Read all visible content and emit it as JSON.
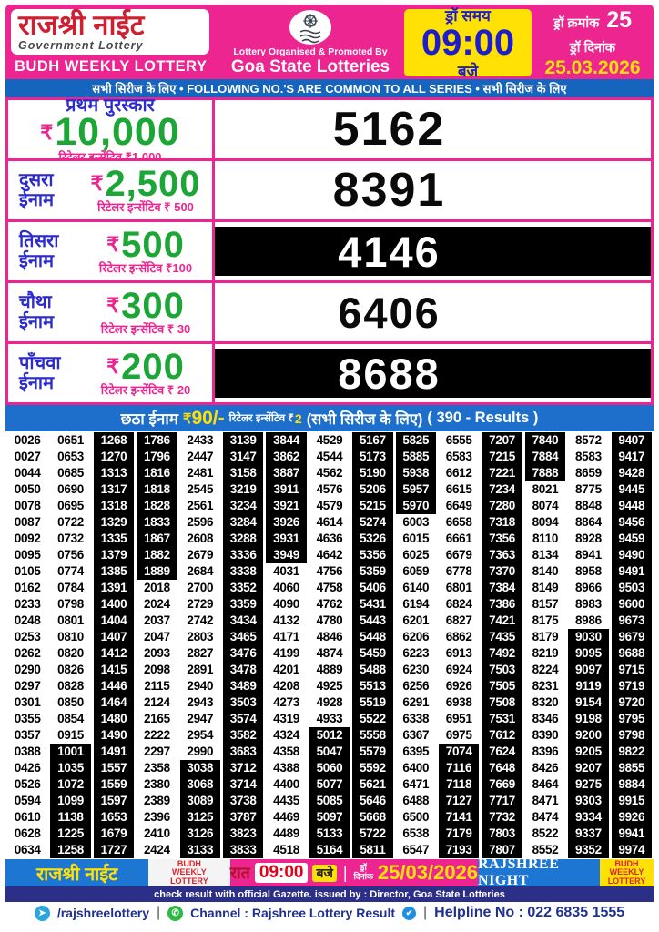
{
  "header": {
    "title": "राजश्री नाईट",
    "subtitle": "Government Lottery",
    "scheme": "BUDH WEEKLY LOTTERY",
    "organiser_line1": "Lottery Organised & Promoted By",
    "organiser_line2": "Goa State Lotteries",
    "draw_time_label": "ड्रॉ समय",
    "draw_time": "09:00",
    "draw_time_suffix": "बजे",
    "draw_no_label": "ड्रॉ क्रमांक",
    "draw_no": "25",
    "draw_date_label": "ड्रॉ दिनांक",
    "draw_date": "25.03.2026"
  },
  "common_strip": "सभी सिरीज के लिए  •  FOLLOWING NO.'S ARE COMMON TO ALL SERIES  • सभी सिरीज के लिए",
  "prizes": [
    {
      "label": "प्रथम पुरस्कार",
      "rupee": "₹",
      "amount": "10,000",
      "incentive": "रिटेलर इन्सेंटिव ₹1,000",
      "number": "5162",
      "inverted": false
    },
    {
      "label_line1": "दुसरा",
      "label_line2": "ईनाम",
      "rupee": "₹",
      "amount": "2,500",
      "incentive": "रिटेलर इन्सेंटिव ₹ 500",
      "number": "8391",
      "inverted": false
    },
    {
      "label_line1": "तिसरा",
      "label_line2": "ईनाम",
      "rupee": "₹",
      "amount": "500",
      "incentive": "रिटेलर इन्सेंटिव ₹100",
      "number": "4146",
      "inverted": true
    },
    {
      "label_line1": "चौथा",
      "label_line2": "ईनाम",
      "rupee": "₹",
      "amount": "300",
      "incentive": "रिटेलर इन्सेंटिव ₹ 30",
      "number": "6406",
      "inverted": false
    },
    {
      "label_line1": "पाँचवा",
      "label_line2": "ईनाम",
      "rupee": "₹",
      "amount": "200",
      "incentive": "रिटेलर इन्सेंटिव ₹ 20",
      "number": "8688",
      "inverted": true
    }
  ],
  "sixth_prize": {
    "label": "छठा ईनाम",
    "rupee": "₹",
    "amount": "90/-",
    "incentive_label": "रिटेलर इन्सेंटिव ₹",
    "incentive_value": "2",
    "series_note": "(सभी सिरीज के लिए)",
    "results_note": "( 390 - Results )"
  },
  "results": [
    [
      "0026",
      "0651",
      "1268",
      "1786",
      "2433",
      "3139",
      "3844",
      "4529",
      "5167",
      "5825",
      "6555",
      "7207",
      "7840",
      "8572",
      "9407"
    ],
    [
      "0027",
      "0653",
      "1270",
      "1796",
      "2447",
      "3147",
      "3862",
      "4544",
      "5173",
      "5885",
      "6583",
      "7215",
      "7884",
      "8583",
      "9417"
    ],
    [
      "0044",
      "0685",
      "1313",
      "1816",
      "2481",
      "3158",
      "3887",
      "4562",
      "5190",
      "5938",
      "6612",
      "7221",
      "7888",
      "8659",
      "9428"
    ],
    [
      "0050",
      "0690",
      "1317",
      "1818",
      "2545",
      "3219",
      "3911",
      "4576",
      "5206",
      "5957",
      "6615",
      "7234",
      "8021",
      "8775",
      "9445"
    ],
    [
      "0078",
      "0695",
      "1318",
      "1828",
      "2561",
      "3234",
      "3921",
      "4579",
      "5215",
      "5970",
      "6649",
      "7280",
      "8074",
      "8848",
      "9448"
    ],
    [
      "0087",
      "0722",
      "1329",
      "1833",
      "2596",
      "3284",
      "3926",
      "4614",
      "5274",
      "6003",
      "6658",
      "7318",
      "8094",
      "8864",
      "9456"
    ],
    [
      "0092",
      "0732",
      "1335",
      "1867",
      "2608",
      "3288",
      "3931",
      "4636",
      "5326",
      "6015",
      "6661",
      "7356",
      "8110",
      "8928",
      "9459"
    ],
    [
      "0095",
      "0756",
      "1379",
      "1882",
      "2679",
      "3336",
      "3949",
      "4642",
      "5356",
      "6025",
      "6679",
      "7363",
      "8134",
      "8941",
      "9490"
    ],
    [
      "0105",
      "0774",
      "1385",
      "1889",
      "2684",
      "3338",
      "4031",
      "4756",
      "5359",
      "6059",
      "6778",
      "7370",
      "8140",
      "8958",
      "9491"
    ],
    [
      "0162",
      "0784",
      "1391",
      "2018",
      "2700",
      "3352",
      "4060",
      "4758",
      "5406",
      "6140",
      "6801",
      "7384",
      "8149",
      "8966",
      "9503"
    ],
    [
      "0233",
      "0798",
      "1400",
      "2024",
      "2729",
      "3359",
      "4090",
      "4762",
      "5431",
      "6194",
      "6824",
      "7386",
      "8157",
      "8983",
      "9600"
    ],
    [
      "0248",
      "0801",
      "1404",
      "2037",
      "2742",
      "3434",
      "4132",
      "4780",
      "5443",
      "6201",
      "6827",
      "7421",
      "8175",
      "8986",
      "9673"
    ],
    [
      "0253",
      "0810",
      "1407",
      "2047",
      "2803",
      "3465",
      "4171",
      "4846",
      "5448",
      "6206",
      "6862",
      "7435",
      "8179",
      "9030",
      "9679"
    ],
    [
      "0262",
      "0820",
      "1412",
      "2093",
      "2827",
      "3476",
      "4199",
      "4874",
      "5459",
      "6223",
      "6913",
      "7492",
      "8219",
      "9095",
      "9688"
    ],
    [
      "0290",
      "0826",
      "1415",
      "2098",
      "2891",
      "3478",
      "4201",
      "4889",
      "5488",
      "6230",
      "6924",
      "7503",
      "8224",
      "9097",
      "9715"
    ],
    [
      "0297",
      "0828",
      "1446",
      "2115",
      "2940",
      "3489",
      "4208",
      "4925",
      "5513",
      "6256",
      "6926",
      "7505",
      "8231",
      "9119",
      "9719"
    ],
    [
      "0301",
      "0850",
      "1464",
      "2124",
      "2943",
      "3503",
      "4273",
      "4928",
      "5519",
      "6291",
      "6938",
      "7508",
      "8320",
      "9154",
      "9720"
    ],
    [
      "0355",
      "0854",
      "1480",
      "2165",
      "2947",
      "3574",
      "4319",
      "4933",
      "5522",
      "6338",
      "6951",
      "7531",
      "8346",
      "9198",
      "9795"
    ],
    [
      "0357",
      "0915",
      "1490",
      "2222",
      "2954",
      "3582",
      "4324",
      "5012",
      "5558",
      "6367",
      "6975",
      "7612",
      "8390",
      "9200",
      "9798"
    ],
    [
      "0388",
      "1001",
      "1491",
      "2297",
      "2990",
      "3683",
      "4358",
      "5047",
      "5579",
      "6395",
      "7074",
      "7624",
      "8396",
      "9205",
      "9822"
    ],
    [
      "0426",
      "1035",
      "1557",
      "2358",
      "3038",
      "3712",
      "4388",
      "5060",
      "5592",
      "6400",
      "7116",
      "7648",
      "8426",
      "9207",
      "9855"
    ],
    [
      "0526",
      "1072",
      "1559",
      "2380",
      "3068",
      "3714",
      "4400",
      "5077",
      "5621",
      "6471",
      "7118",
      "7669",
      "8464",
      "9275",
      "9884"
    ],
    [
      "0594",
      "1099",
      "1597",
      "2389",
      "3089",
      "3738",
      "4435",
      "5085",
      "5646",
      "6488",
      "7127",
      "7717",
      "8471",
      "9303",
      "9915"
    ],
    [
      "0610",
      "1138",
      "1653",
      "2396",
      "3125",
      "3787",
      "4469",
      "5097",
      "5668",
      "6500",
      "7141",
      "7732",
      "8474",
      "9334",
      "9926"
    ],
    [
      "0628",
      "1225",
      "1679",
      "2410",
      "3126",
      "3823",
      "4489",
      "5133",
      "5722",
      "6538",
      "7179",
      "7803",
      "8522",
      "9337",
      "9941"
    ],
    [
      "0634",
      "1258",
      "1727",
      "2424",
      "3133",
      "3833",
      "4518",
      "5164",
      "5811",
      "6547",
      "7193",
      "7807",
      "8552",
      "9352",
      "9974"
    ]
  ],
  "footer": {
    "title": "राजश्री नाईट",
    "scheme_line1": "BUDH",
    "scheme_line2": "WEEKLY",
    "scheme_line3": "LOTTERY",
    "raat": "रात",
    "time": "09:00",
    "baje": "बजे",
    "divider": "|",
    "draw_date_label_line1": "ड्रॉ",
    "draw_date_label_line2": "दिनांक",
    "date": "25/03/2026",
    "brand": "RAJSHREE NIGHT",
    "gazette_note": "check result with official Gazette. issued by : Director, Goa State Lotteries",
    "telegram_handle": "/rajshreelottery",
    "separator": "|",
    "channel_text": "Channel : Rajshree Lottery Result",
    "helpline": "Helpline No : 022 6835 1555"
  },
  "colors": {
    "pink": "#EC2590",
    "strip_blue": "#1565BE",
    "sixth_blue": "#1D6FCB",
    "label_blue": "#2B2BCE",
    "amount_green": "#1BA636",
    "title_red": "#CE2030",
    "yellow": "#FFE105",
    "navy": "#2C2F88",
    "footer_box_blue": "#1D76D2",
    "black_cell": "#000000"
  }
}
